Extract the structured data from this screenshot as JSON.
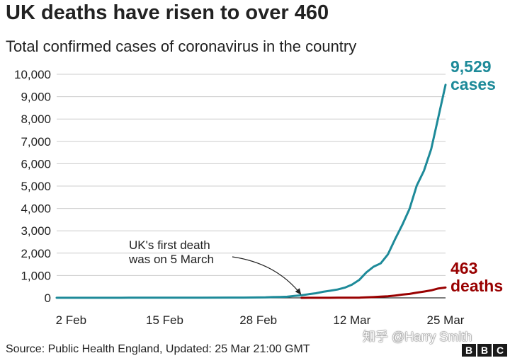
{
  "title": "UK deaths have risen to over 460",
  "subtitle": "Total confirmed cases of coronavirus in the country",
  "source": "Source: Public Health England, Updated: 25 Mar 21:00 GMT",
  "watermark": "知乎 @Harry Smith",
  "logo_letters": [
    "B",
    "B",
    "C"
  ],
  "colors": {
    "cases": "#1d8a99",
    "deaths": "#990000",
    "grid": "#cccccc",
    "text": "#222222"
  },
  "chart_data": {
    "type": "line",
    "title": "UK deaths have risen to over 460",
    "subtitle": "Total confirmed cases of coronavirus in the country",
    "xlabel": "",
    "ylabel": "",
    "x_ticks": [
      "2 Feb",
      "15 Feb",
      "28 Feb",
      "12 Mar",
      "25 Mar"
    ],
    "y_ticks": [
      "0",
      "1,000",
      "2,000",
      "3,000",
      "4,000",
      "5,000",
      "6,000",
      "7,000",
      "8,000",
      "9,000",
      "10,000"
    ],
    "ylim": [
      0,
      10000
    ],
    "xlim": [
      "31 Jan",
      "25 Mar"
    ],
    "grid": true,
    "series": [
      {
        "name": "cases",
        "color": "#1d8a99",
        "end_label_value": "9,529",
        "end_label_name": "cases",
        "points": [
          [
            "31 Jan",
            2
          ],
          [
            "3 Feb",
            2
          ],
          [
            "6 Feb",
            3
          ],
          [
            "9 Feb",
            4
          ],
          [
            "10 Feb",
            8
          ],
          [
            "11 Feb",
            8
          ],
          [
            "13 Feb",
            9
          ],
          [
            "20 Feb",
            9
          ],
          [
            "24 Feb",
            13
          ],
          [
            "26 Feb",
            13
          ],
          [
            "27 Feb",
            15
          ],
          [
            "28 Feb",
            20
          ],
          [
            "29 Feb",
            23
          ],
          [
            "1 Mar",
            36
          ],
          [
            "2 Mar",
            40
          ],
          [
            "3 Mar",
            51
          ],
          [
            "4 Mar",
            85
          ],
          [
            "5 Mar",
            115
          ],
          [
            "6 Mar",
            163
          ],
          [
            "7 Mar",
            206
          ],
          [
            "8 Mar",
            273
          ],
          [
            "9 Mar",
            321
          ],
          [
            "10 Mar",
            373
          ],
          [
            "11 Mar",
            456
          ],
          [
            "12 Mar",
            590
          ],
          [
            "13 Mar",
            798
          ],
          [
            "14 Mar",
            1140
          ],
          [
            "15 Mar",
            1391
          ],
          [
            "16 Mar",
            1543
          ],
          [
            "17 Mar",
            1950
          ],
          [
            "18 Mar",
            2626
          ],
          [
            "19 Mar",
            3269
          ],
          [
            "20 Mar",
            3983
          ],
          [
            "21 Mar",
            5018
          ],
          [
            "22 Mar",
            5683
          ],
          [
            "23 Mar",
            6650
          ],
          [
            "24 Mar",
            8077
          ],
          [
            "25 Mar",
            9529
          ]
        ]
      },
      {
        "name": "deaths",
        "color": "#990000",
        "end_label_value": "463",
        "end_label_name": "deaths",
        "points": [
          [
            "5 Mar",
            1
          ],
          [
            "6 Mar",
            2
          ],
          [
            "7 Mar",
            2
          ],
          [
            "8 Mar",
            3
          ],
          [
            "9 Mar",
            4
          ],
          [
            "10 Mar",
            6
          ],
          [
            "11 Mar",
            8
          ],
          [
            "12 Mar",
            8
          ],
          [
            "13 Mar",
            10
          ],
          [
            "14 Mar",
            21
          ],
          [
            "15 Mar",
            35
          ],
          [
            "16 Mar",
            55
          ],
          [
            "17 Mar",
            71
          ],
          [
            "18 Mar",
            104
          ],
          [
            "19 Mar",
            144
          ],
          [
            "20 Mar",
            177
          ],
          [
            "21 Mar",
            233
          ],
          [
            "22 Mar",
            281
          ],
          [
            "23 Mar",
            335
          ],
          [
            "24 Mar",
            422
          ],
          [
            "25 Mar",
            463
          ]
        ]
      }
    ],
    "annotations": [
      {
        "text_lines": [
          "UK's first death",
          "was on 5 March"
        ],
        "points_to": [
          "5 Mar",
          0
        ]
      }
    ]
  }
}
